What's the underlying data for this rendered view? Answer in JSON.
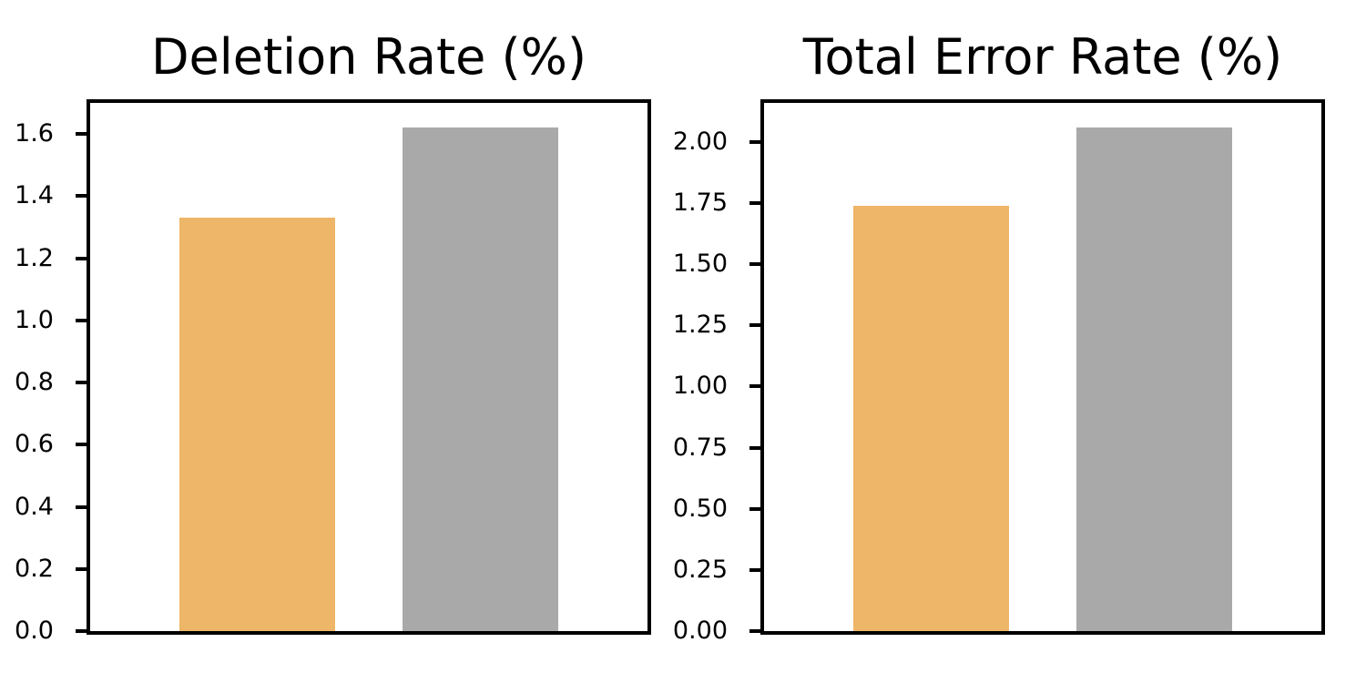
{
  "figure": {
    "background_color": "#ffffff",
    "spine_color": "#000000"
  },
  "colors": {
    "orange_bar": "#EEB668",
    "gray_bar": "#A9A9A9"
  },
  "chart_data": [
    {
      "type": "bar",
      "title": "Deletion Rate (%)",
      "categories": [
        "",
        ""
      ],
      "values": [
        1.33,
        1.62
      ],
      "colors": [
        "#EEB668",
        "#A9A9A9"
      ],
      "xlabel": "",
      "ylabel": "",
      "ylim": [
        0,
        1.7
      ],
      "ytick_labels": [
        "0.0",
        "0.2",
        "0.4",
        "0.6",
        "0.8",
        "1.0",
        "1.2",
        "1.4",
        "1.6"
      ],
      "grid": false,
      "legend": null,
      "bar_width_fraction": 0.28,
      "bar_center_fractions": [
        0.3,
        0.7
      ]
    },
    {
      "type": "bar",
      "title": "Total Error Rate (%)",
      "categories": [
        "",
        ""
      ],
      "values": [
        1.74,
        2.06
      ],
      "colors": [
        "#EEB668",
        "#A9A9A9"
      ],
      "xlabel": "",
      "ylabel": "",
      "ylim": [
        0,
        2.16
      ],
      "ytick_labels": [
        "0.00",
        "0.25",
        "0.50",
        "0.75",
        "1.00",
        "1.25",
        "1.50",
        "1.75",
        "2.00"
      ],
      "grid": false,
      "legend": null,
      "bar_width_fraction": 0.28,
      "bar_center_fractions": [
        0.3,
        0.7
      ]
    }
  ]
}
